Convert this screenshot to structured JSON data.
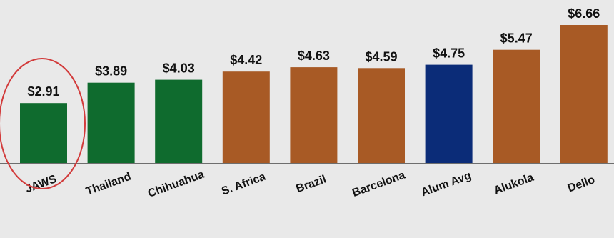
{
  "chart_data": {
    "type": "bar",
    "title": "",
    "xlabel": "",
    "ylabel": "",
    "ylim": [
      0,
      6.66
    ],
    "grid": false,
    "categories": [
      "JAWS",
      "Thailand",
      "Chihuahua",
      "S. Africa",
      "Brazil",
      "Barcelona",
      "Alum Avg",
      "Alukola",
      "Dello"
    ],
    "values": [
      2.91,
      3.89,
      4.03,
      4.42,
      4.63,
      4.59,
      4.75,
      5.47,
      6.66
    ],
    "value_labels": [
      "$2.91",
      "$3.89",
      "$4.03",
      "$4.42",
      "$4.63",
      "$4.59",
      "$4.75",
      "$5.47",
      "$6.66"
    ],
    "bar_colors": [
      "#0f6b2e",
      "#0f6b2e",
      "#0f6b2e",
      "#a85a25",
      "#a85a25",
      "#a85a25",
      "#0b2c78",
      "#a85a25",
      "#a85a25"
    ],
    "highlight": {
      "category": "JAWS",
      "shape": "ellipse",
      "color": "#d23b3b"
    }
  }
}
